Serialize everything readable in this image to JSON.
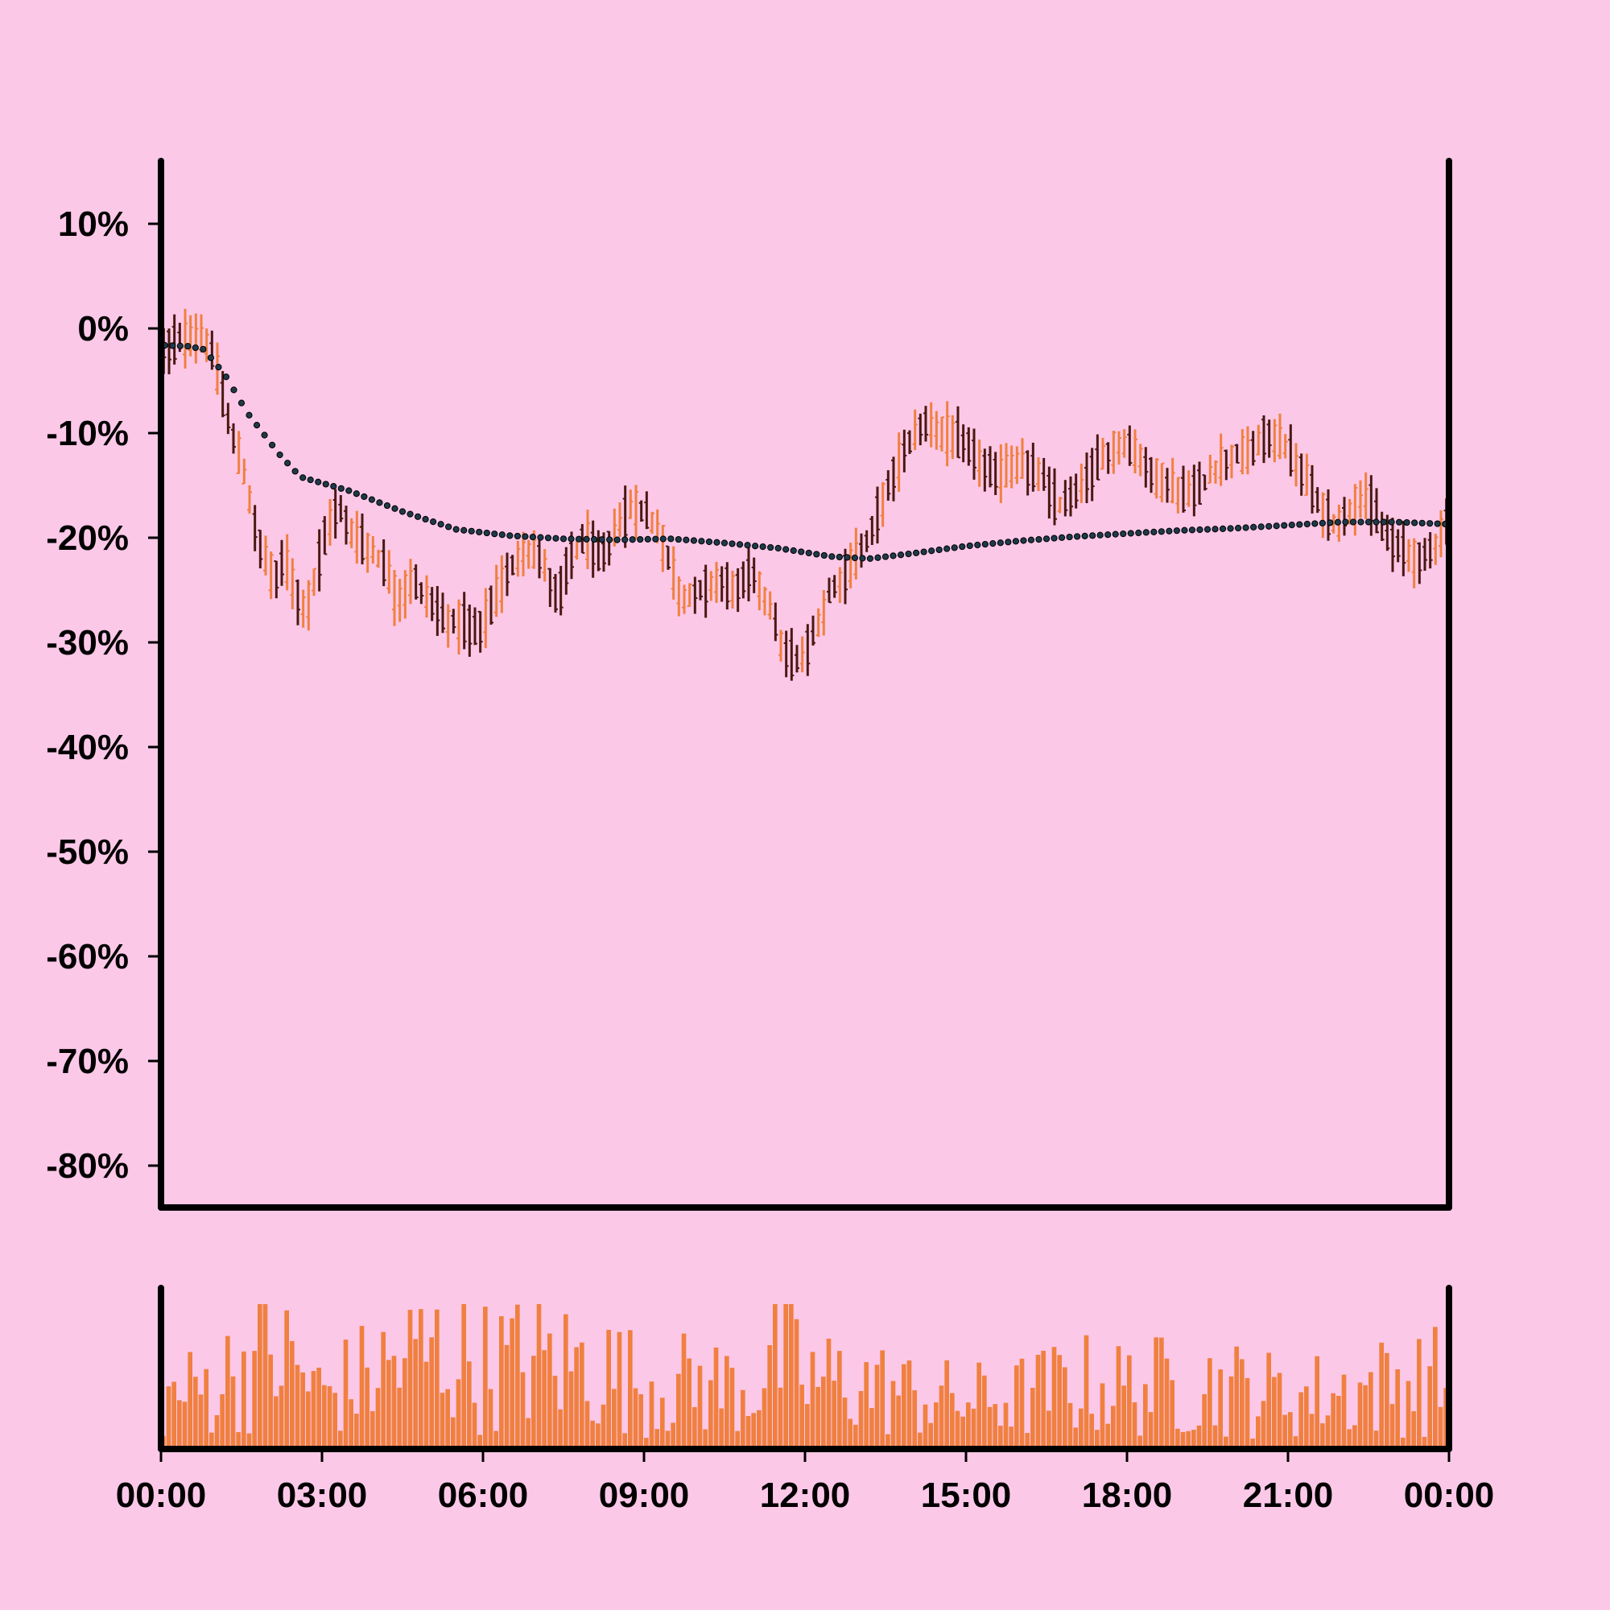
{
  "chart_data": {
    "type": "ohlc",
    "x_axis": {
      "tick_labels": [
        "00:00",
        "03:00",
        "06:00",
        "09:00",
        "12:00",
        "15:00",
        "18:00",
        "21:00",
        "00:00"
      ],
      "tick_hours": [
        0,
        3,
        6,
        9,
        12,
        15,
        18,
        21,
        24
      ],
      "range_hours": [
        0,
        24
      ]
    },
    "y_axis": {
      "tick_labels": [
        "10%",
        "0%",
        "-10%",
        "-20%",
        "-30%",
        "-40%",
        "-50%",
        "-60%",
        "-70%",
        "-80%"
      ],
      "tick_values": [
        10,
        0,
        -10,
        -20,
        -30,
        -40,
        -50,
        -60,
        -70,
        -80
      ],
      "range": [
        -84,
        16
      ],
      "unit": "%"
    },
    "colors": {
      "background": "#fcc8e8",
      "up": "#f08040",
      "down": "#4a1810",
      "moving_average": "#1e3a4a",
      "volume": "#f08040",
      "axis": "#000000"
    },
    "price_anchors": [
      [
        0,
        -2
      ],
      [
        0.4,
        -1
      ],
      [
        0.8,
        -1
      ],
      [
        1.0,
        -3
      ],
      [
        1.2,
        -8
      ],
      [
        1.5,
        -13
      ],
      [
        1.8,
        -20
      ],
      [
        2.1,
        -24
      ],
      [
        2.3,
        -22
      ],
      [
        2.5,
        -25
      ],
      [
        2.7,
        -27
      ],
      [
        2.9,
        -23
      ],
      [
        3.1,
        -19
      ],
      [
        3.3,
        -17
      ],
      [
        3.6,
        -20
      ],
      [
        3.9,
        -21
      ],
      [
        4.2,
        -23
      ],
      [
        4.4,
        -26
      ],
      [
        4.7,
        -24
      ],
      [
        5.0,
        -26
      ],
      [
        5.3,
        -28
      ],
      [
        5.6,
        -28
      ],
      [
        5.9,
        -29
      ],
      [
        6.2,
        -26
      ],
      [
        6.5,
        -23
      ],
      [
        6.8,
        -21
      ],
      [
        7.1,
        -22
      ],
      [
        7.4,
        -26
      ],
      [
        7.6,
        -22
      ],
      [
        7.9,
        -20
      ],
      [
        8.2,
        -22
      ],
      [
        8.5,
        -19
      ],
      [
        8.8,
        -17
      ],
      [
        9.1,
        -18
      ],
      [
        9.4,
        -21
      ],
      [
        9.7,
        -26
      ],
      [
        10.0,
        -25
      ],
      [
        10.4,
        -24
      ],
      [
        10.7,
        -25
      ],
      [
        11.0,
        -23
      ],
      [
        11.3,
        -26
      ],
      [
        11.6,
        -31
      ],
      [
        11.9,
        -32
      ],
      [
        12.2,
        -29
      ],
      [
        12.5,
        -25
      ],
      [
        12.8,
        -23
      ],
      [
        13.1,
        -21
      ],
      [
        13.4,
        -17
      ],
      [
        13.8,
        -12
      ],
      [
        14.2,
        -9
      ],
      [
        14.6,
        -10
      ],
      [
        15.0,
        -11
      ],
      [
        15.3,
        -13
      ],
      [
        15.6,
        -14
      ],
      [
        16.0,
        -13
      ],
      [
        16.4,
        -14
      ],
      [
        16.7,
        -17
      ],
      [
        17.0,
        -16
      ],
      [
        17.3,
        -14
      ],
      [
        17.6,
        -12
      ],
      [
        17.9,
        -11
      ],
      [
        18.2,
        -12
      ],
      [
        18.5,
        -14
      ],
      [
        18.8,
        -15
      ],
      [
        19.1,
        -16
      ],
      [
        19.4,
        -15
      ],
      [
        19.7,
        -13
      ],
      [
        20.0,
        -12
      ],
      [
        20.3,
        -12
      ],
      [
        20.6,
        -10
      ],
      [
        20.9,
        -11
      ],
      [
        21.3,
        -14
      ],
      [
        21.6,
        -17
      ],
      [
        21.9,
        -19
      ],
      [
        22.2,
        -17
      ],
      [
        22.5,
        -16
      ],
      [
        22.8,
        -20
      ],
      [
        23.1,
        -21
      ],
      [
        23.4,
        -22
      ],
      [
        23.7,
        -21
      ],
      [
        24.0,
        -18
      ]
    ],
    "moving_average_anchors": [
      [
        0,
        -1.6
      ],
      [
        0.5,
        -1.7
      ],
      [
        0.8,
        -2
      ],
      [
        1.2,
        -4.5
      ],
      [
        1.6,
        -8
      ],
      [
        2.2,
        -12
      ],
      [
        2.6,
        -14.2
      ],
      [
        3.5,
        -15.5
      ],
      [
        4.5,
        -17.5
      ],
      [
        5.5,
        -19.2
      ],
      [
        6.5,
        -19.8
      ],
      [
        7.5,
        -20.1
      ],
      [
        8.5,
        -20.2
      ],
      [
        9.5,
        -20.1
      ],
      [
        10.5,
        -20.5
      ],
      [
        11.5,
        -21
      ],
      [
        12.5,
        -21.8
      ],
      [
        13.2,
        -22
      ],
      [
        14,
        -21.5
      ],
      [
        15,
        -20.8
      ],
      [
        16,
        -20.3
      ],
      [
        17,
        -19.9
      ],
      [
        18,
        -19.6
      ],
      [
        19,
        -19.3
      ],
      [
        20,
        -19.1
      ],
      [
        21,
        -18.8
      ],
      [
        22,
        -18.5
      ],
      [
        23,
        -18.5
      ],
      [
        24,
        -18.7
      ]
    ],
    "volume_anchors": [
      [
        0,
        22
      ],
      [
        1,
        30
      ],
      [
        2,
        45
      ],
      [
        2.5,
        38
      ],
      [
        3,
        25
      ],
      [
        4,
        35
      ],
      [
        5,
        45
      ],
      [
        6,
        38
      ],
      [
        7,
        40
      ],
      [
        8,
        38
      ],
      [
        9,
        30
      ],
      [
        10,
        30
      ],
      [
        11,
        28
      ],
      [
        11.5,
        45
      ],
      [
        12,
        32
      ],
      [
        13,
        30
      ],
      [
        14,
        25
      ],
      [
        15,
        22
      ],
      [
        16,
        24
      ],
      [
        17,
        30
      ],
      [
        18,
        28
      ],
      [
        19,
        30
      ],
      [
        20,
        28
      ],
      [
        21,
        24
      ],
      [
        22,
        26
      ],
      [
        23,
        30
      ],
      [
        24,
        32
      ]
    ],
    "n_bars": 240
  }
}
